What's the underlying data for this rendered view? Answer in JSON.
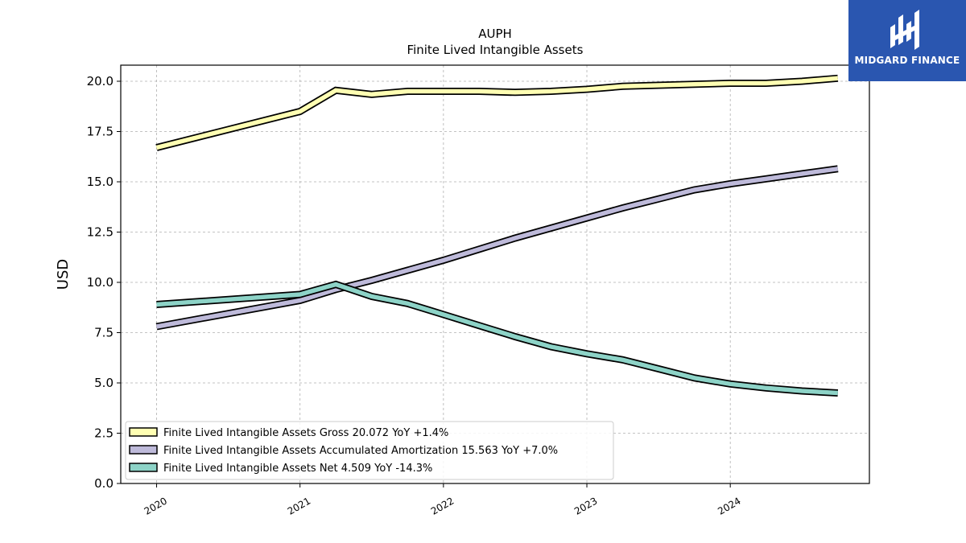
{
  "logo": {
    "text": "MIDGARD FINANCE",
    "bg_color": "#2a56b0",
    "icon": "midgard-logo-icon"
  },
  "chart_data": {
    "type": "line",
    "title": "AUPH",
    "subtitle": "Finite Lived Intangible Assets",
    "xlabel": "",
    "ylabel": "USD",
    "ylim": [
      0,
      20.8
    ],
    "xlim": [
      2019.75,
      2024.97
    ],
    "yticks": [
      "0.0",
      "2.5",
      "5.0",
      "7.5",
      "10.0",
      "12.5",
      "15.0",
      "17.5",
      "20.0"
    ],
    "xticks": [
      "2020",
      "2021",
      "2022",
      "2023",
      "2024"
    ],
    "grid": true,
    "legend_position": "lower-left",
    "x": [
      2020.0,
      2021.0,
      2021.25,
      2021.5,
      2021.75,
      2022.0,
      2022.25,
      2022.5,
      2022.75,
      2023.0,
      2023.25,
      2023.5,
      2023.75,
      2024.0,
      2024.25,
      2024.5,
      2024.75
    ],
    "series": [
      {
        "name": "Finite Lived Intangible Assets Gross",
        "legend": "Finite Lived Intangible Assets Gross  20.072 YoY +1.4%",
        "color": "#ffffb3",
        "values": [
          16.7,
          18.5,
          19.55,
          19.35,
          19.5,
          19.5,
          19.5,
          19.45,
          19.5,
          19.6,
          19.75,
          19.8,
          19.85,
          19.9,
          19.9,
          20.0,
          20.15
        ]
      },
      {
        "name": "Finite Lived Intangible Assets Accumulated Amortization",
        "legend": "Finite Lived Intangible Assets Accumulated Amortization  15.563 YoY +7.0%",
        "color": "#bebada",
        "values": [
          7.8,
          9.1,
          9.65,
          10.1,
          10.6,
          11.1,
          11.65,
          12.2,
          12.7,
          13.2,
          13.7,
          14.15,
          14.6,
          14.9,
          15.15,
          15.4,
          15.65
        ]
      },
      {
        "name": "Finite Lived Intangible Assets Net",
        "legend": "Finite Lived Intangible Assets Net  4.509 YoY -14.3%",
        "color": "#8dd3c7",
        "values": [
          8.9,
          9.4,
          9.9,
          9.3,
          8.95,
          8.4,
          7.85,
          7.3,
          6.8,
          6.45,
          6.15,
          5.7,
          5.25,
          4.95,
          4.75,
          4.6,
          4.5
        ]
      }
    ]
  }
}
